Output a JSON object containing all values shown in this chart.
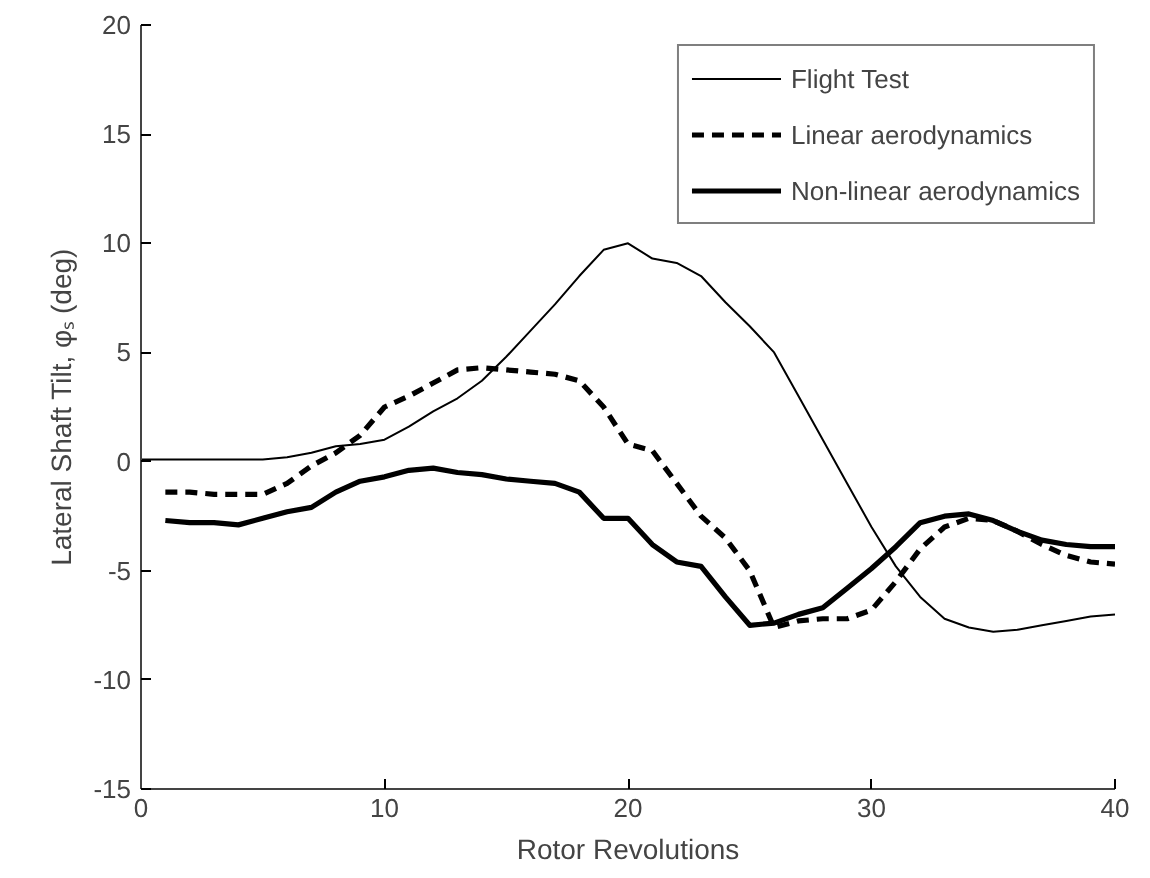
{
  "chart_data": {
    "type": "line",
    "xlabel": "Rotor Revolutions",
    "ylabel": "Lateral Shaft Tilt, φₛ (deg)",
    "xlim": [
      0,
      40
    ],
    "xticks": [
      0,
      10,
      20,
      30,
      40
    ],
    "ylim": [
      -15,
      20
    ],
    "yticks": [
      -15,
      -10,
      -5,
      0,
      5,
      10,
      15,
      20
    ],
    "grid": false,
    "legend": "top right",
    "marker": "none",
    "series": [
      {
        "name": "Flight Test",
        "color": "#000000",
        "line_style": "solid",
        "x": [
          0,
          1,
          2,
          3,
          4,
          5,
          6,
          7,
          8,
          9,
          10,
          11,
          12,
          13,
          14,
          15,
          16,
          17,
          18,
          19,
          20,
          21,
          22,
          23,
          24,
          25,
          26,
          27,
          28,
          29,
          30,
          31,
          32,
          33,
          34,
          35,
          36,
          37,
          38,
          39,
          40
        ],
        "values": [
          0.1,
          0.1,
          0.1,
          0.1,
          0.1,
          0.1,
          0.2,
          0.4,
          0.7,
          0.8,
          1.0,
          1.6,
          2.3,
          2.9,
          3.7,
          4.8,
          6.0,
          7.2,
          8.5,
          9.7,
          10.0,
          9.3,
          9.1,
          8.5,
          7.3,
          6.2,
          5.0,
          3.0,
          1.0,
          -1.0,
          -3.0,
          -4.8,
          -6.2,
          -7.2,
          -7.6,
          -7.8,
          -7.7,
          -7.5,
          -7.3,
          -7.1,
          -7.0
        ]
      },
      {
        "name": "Linear aerodynamics",
        "color": "#000000",
        "line_style": "dashed",
        "x": [
          1,
          2,
          3,
          4,
          5,
          6,
          7,
          8,
          9,
          10,
          11,
          12,
          13,
          14,
          15,
          16,
          17,
          18,
          19,
          20,
          21,
          22,
          23,
          24,
          25,
          26,
          27,
          28,
          29,
          30,
          31,
          32,
          33,
          34,
          35,
          36,
          37,
          38,
          39,
          40
        ],
        "values": [
          -1.4,
          -1.4,
          -1.5,
          -1.5,
          -1.5,
          -1.0,
          -0.2,
          0.4,
          1.2,
          2.5,
          3.0,
          3.6,
          4.2,
          4.3,
          4.2,
          4.1,
          4.0,
          3.7,
          2.5,
          0.8,
          0.5,
          -1.0,
          -2.5,
          -3.5,
          -5.0,
          -7.6,
          -7.3,
          -7.2,
          -7.2,
          -6.8,
          -5.5,
          -4.0,
          -3.0,
          -2.6,
          -2.7,
          -3.2,
          -3.8,
          -4.3,
          -4.6,
          -4.7
        ]
      },
      {
        "name": "Non-linear aerodynamics",
        "color": "#000000",
        "line_style": "solid",
        "x": [
          1,
          2,
          3,
          4,
          5,
          6,
          7,
          8,
          9,
          10,
          11,
          12,
          13,
          14,
          15,
          16,
          17,
          18,
          19,
          20,
          21,
          22,
          23,
          24,
          25,
          26,
          27,
          28,
          29,
          30,
          31,
          32,
          33,
          34,
          35,
          36,
          37,
          38,
          39,
          40
        ],
        "values": [
          -2.7,
          -2.8,
          -2.8,
          -2.9,
          -2.6,
          -2.3,
          -2.1,
          -1.4,
          -0.9,
          -0.7,
          -0.4,
          -0.3,
          -0.5,
          -0.6,
          -0.8,
          -0.9,
          -1.0,
          -1.4,
          -2.6,
          -2.6,
          -3.8,
          -4.6,
          -4.8,
          -6.2,
          -7.5,
          -7.4,
          -7.0,
          -6.7,
          -5.8,
          -4.9,
          -3.9,
          -2.8,
          -2.5,
          -2.4,
          -2.7,
          -3.2,
          -3.6,
          -3.8,
          -3.9,
          -3.9
        ]
      }
    ]
  }
}
